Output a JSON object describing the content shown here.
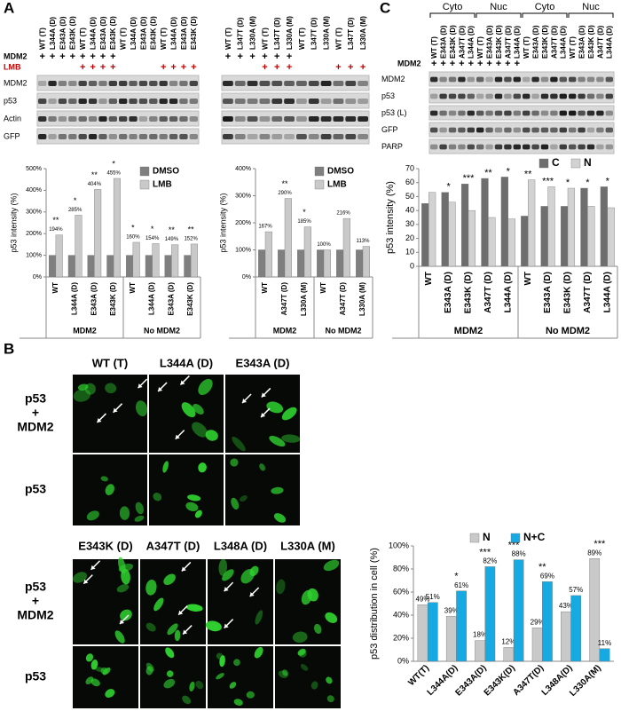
{
  "panel_labels": [
    "A",
    "B",
    "C"
  ],
  "blot_a_left": {
    "lanes": [
      "WT (T)",
      "L344A (D)",
      "E343A (D)",
      "E343K (D)",
      "WT (T)",
      "L344A (D)",
      "E343A (D)",
      "E343K (D)",
      "WT (T)",
      "L344A (D)",
      "E343A (D)",
      "E343K (D)",
      "WT (T)",
      "L344A (D)",
      "E343A (D)",
      "E343K (D)"
    ],
    "mdm2_label": "MDM2",
    "lmb_label": "LMB",
    "mdm2": [
      "+",
      "+",
      "+",
      "+",
      "+",
      "+",
      "+",
      "+",
      null,
      null,
      null,
      null,
      null,
      null,
      null,
      null
    ],
    "lmb": [
      null,
      null,
      null,
      null,
      "+",
      "+",
      "+",
      "+",
      null,
      null,
      null,
      null,
      "+",
      "+",
      "+",
      "+"
    ],
    "rows": [
      "MDM2",
      "p53",
      "Actin",
      "GFP"
    ]
  },
  "blot_a_right": {
    "lanes": [
      "WT (T)",
      "L347T (D)",
      "L330A (M)",
      "WT (T)",
      "L347T (D)",
      "L330A (M)",
      "WT (T)",
      "L347T (D)",
      "L330A (M)",
      "WT (T)",
      "L347T (D)",
      "L330A (M)"
    ],
    "mdm2": [
      "+",
      "+",
      "+",
      "+",
      "+",
      "+",
      null,
      null,
      null,
      null,
      null,
      null
    ],
    "lmb": [
      null,
      null,
      null,
      "+",
      "+",
      "+",
      null,
      null,
      null,
      "+",
      "+",
      "+"
    ]
  },
  "blot_c": {
    "groups": [
      "Cyto",
      "Nuc",
      "Cyto",
      "Nuc"
    ],
    "lanes": [
      "WT (T)",
      "E343A (D)",
      "E343K (D)",
      "A347T (D)",
      "L344A (D)",
      "WT (T)",
      "E343A (D)",
      "E343K (D)",
      "A347T (D)",
      "L344A (D)",
      "WT (T)",
      "E343A (D)",
      "E343K (D)",
      "A347T (D)",
      "L344A (D)",
      "WT (T)",
      "E343A (D)",
      "E343K (D)",
      "A347T (D)",
      "L344A (D)"
    ],
    "mdm2_label": "MDM2",
    "mdm2": [
      "+",
      "+",
      "+",
      "+",
      "+",
      "+",
      "+",
      "+",
      "+",
      "+",
      null,
      null,
      null,
      null,
      null,
      null,
      null,
      null,
      null,
      null
    ],
    "rows": [
      "MDM2",
      "p53",
      "p53 (L)",
      "GFP",
      "PARP"
    ]
  },
  "micrographs": {
    "top_columns": [
      "WT (T)",
      "L344A (D)",
      "E343A (D)"
    ],
    "bottom_columns": [
      "E343K (D)",
      "A347T (D)",
      "L348A (D)",
      "L330A (M)"
    ],
    "row_merged": [
      "p53",
      "+",
      "MDM2"
    ],
    "row_single": "p53"
  },
  "chart_data": [
    {
      "type": "bar",
      "y_label": "p53 intensity (%)",
      "categories": [
        "WT",
        "L344A (D)",
        "E343A (D)",
        "E343K (D)",
        "WT",
        "L344A (D)",
        "E343A (D)",
        "E343K (D)"
      ],
      "groups": [
        "MDM2",
        "No MDM2"
      ],
      "series": [
        {
          "name": "DMSO",
          "color": "#7f7f7f",
          "values": [
            100,
            100,
            100,
            100,
            100,
            100,
            100,
            100
          ]
        },
        {
          "name": "LMB",
          "color": "#c9c9c9",
          "values": [
            194,
            285,
            404,
            455,
            160,
            154,
            149,
            152
          ],
          "value_labels": [
            "194%",
            "285%",
            "404%",
            "455%",
            "160%",
            "154%",
            "149%",
            "152%"
          ]
        }
      ],
      "annotations": [
        "**",
        "*",
        "**",
        "*",
        "*",
        "*",
        "**",
        "**"
      ],
      "ylim": [
        0,
        500
      ],
      "yticks": [
        {
          "value": 0,
          "label": "0%"
        },
        {
          "value": 100,
          "label": "100%"
        },
        {
          "value": 200,
          "label": "200%"
        },
        {
          "value": 300,
          "label": "300%"
        },
        {
          "value": 400,
          "label": "400%"
        },
        {
          "value": 500,
          "label": "500%"
        }
      ]
    },
    {
      "type": "bar",
      "y_label": "p53 intensity (%)",
      "categories": [
        "WT",
        "A347T (D)",
        "L330A (M)",
        "WT",
        "A347T (D)",
        "L330A (M)"
      ],
      "groups": [
        "MDM2",
        "No MDM2"
      ],
      "series": [
        {
          "name": "DMSO",
          "color": "#7f7f7f",
          "values": [
            100,
            100,
            100,
            100,
            100,
            100
          ]
        },
        {
          "name": "LMB",
          "color": "#c9c9c9",
          "values": [
            167,
            290,
            185,
            100,
            216,
            113
          ],
          "value_labels": [
            "167%",
            "290%",
            "185%",
            "100%",
            "216%",
            "113%"
          ]
        }
      ],
      "annotations": [
        null,
        "**",
        "*",
        null,
        null,
        null
      ],
      "ylim": [
        0,
        400
      ],
      "yticks": [
        {
          "value": 0,
          "label": "0%"
        },
        {
          "value": 100,
          "label": "100%"
        },
        {
          "value": 200,
          "label": "200%"
        },
        {
          "value": 300,
          "label": "300%"
        },
        {
          "value": 400,
          "label": "400%"
        }
      ]
    },
    {
      "type": "bar",
      "y_label": "p53 intensity (%)",
      "categories": [
        "WT",
        "E343A (D)",
        "E343K (D)",
        "A347T (D)",
        "L344A (D)",
        "WT",
        "E343A (D)",
        "E343K (D)",
        "A347T (D)",
        "L344A (D)"
      ],
      "groups": [
        "MDM2",
        "No MDM2"
      ],
      "series": [
        {
          "name": "C",
          "color": "#6e6e6e",
          "values": [
            45,
            53,
            59,
            63,
            64,
            36,
            43,
            43,
            56,
            57
          ]
        },
        {
          "name": "N",
          "color": "#d2d2d2",
          "values": [
            53,
            46,
            40,
            35,
            34,
            62,
            57,
            56,
            43,
            42
          ]
        }
      ],
      "annotations": [
        null,
        "*",
        "***",
        "**",
        "*",
        "**",
        "***",
        "*",
        "*",
        "*"
      ],
      "ylim": [
        0,
        70
      ],
      "yticks": [
        0,
        10,
        20,
        30,
        40,
        50,
        60,
        70
      ]
    },
    {
      "type": "bar",
      "y_label": "p53 distribution in cell (%)",
      "categories": [
        "WT(T)",
        "L344A(D)",
        "E343A(D)",
        "E343K(D)",
        "A347T(D)",
        "L348A(D)",
        "L330A(M)"
      ],
      "series": [
        {
          "name": "N",
          "color": "#c9c9c9",
          "values": [
            49,
            39,
            18,
            12,
            29,
            43,
            89
          ],
          "value_labels": [
            "49%",
            "39%",
            "18%",
            "12%",
            "29%",
            "43%",
            "89%"
          ]
        },
        {
          "name": "N+C",
          "color": "#17a9e1",
          "values": [
            51,
            61,
            82,
            88,
            69,
            57,
            11
          ],
          "value_labels": [
            "51%",
            "61%",
            "82%",
            "88%",
            "69%",
            "57%",
            "11%"
          ]
        }
      ],
      "annotations": [
        null,
        "*",
        "***",
        "***",
        "**",
        null,
        "***"
      ],
      "ylim": [
        0,
        100
      ],
      "yticks": [
        {
          "value": 0,
          "label": "0%"
        },
        {
          "value": 20,
          "label": "20%"
        },
        {
          "value": 40,
          "label": "40%"
        },
        {
          "value": 60,
          "label": "60%"
        },
        {
          "value": 80,
          "label": "80%"
        },
        {
          "value": 100,
          "label": "100%"
        }
      ]
    }
  ]
}
